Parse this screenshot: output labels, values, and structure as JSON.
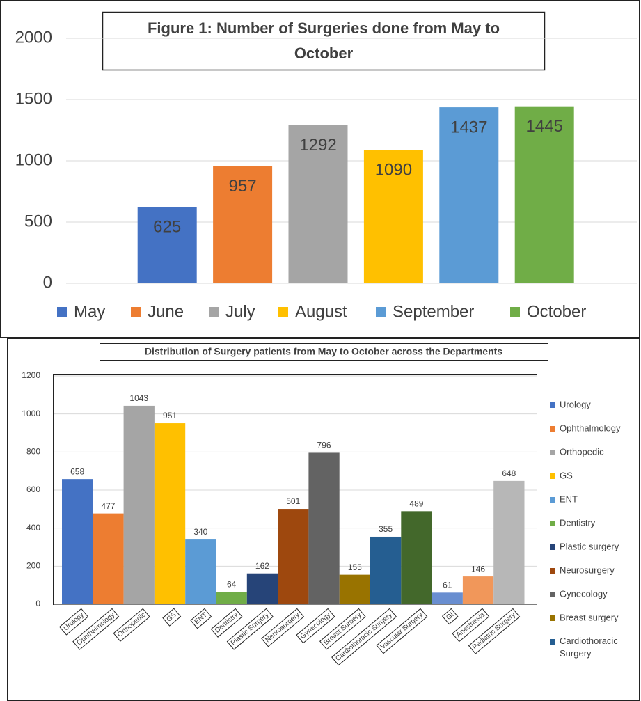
{
  "chart_data": [
    {
      "type": "bar",
      "title": "Figure 1: Number of Surgeries done from May to October",
      "categories": [
        "May",
        "June",
        "July",
        "August",
        "September",
        "October"
      ],
      "values": [
        625,
        957,
        1292,
        1090,
        1437,
        1445
      ],
      "colors": [
        "#4472c4",
        "#ed7d31",
        "#a5a5a5",
        "#ffc000",
        "#5b9bd5",
        "#70ad47"
      ],
      "ylim": [
        0,
        2000
      ],
      "yticks": [
        0,
        500,
        1000,
        1500,
        2000
      ],
      "grid": true,
      "legend": "bottom"
    },
    {
      "type": "bar",
      "title": "Distribution of Surgery patients from May to October across the Departments",
      "categories": [
        "Urology",
        "Ophthalmology",
        "Orthopedic",
        "GS",
        "ENT",
        "Dentistry",
        "Plastic Surgery",
        "Neurosurgery",
        "Gynecology",
        "Breast Surgery",
        "Cardiothoracic Surgery",
        "Vascular Surgery",
        "GI",
        "Anesthesia",
        "Pediatric Surgery"
      ],
      "values": [
        658,
        477,
        1043,
        951,
        340,
        64,
        162,
        501,
        796,
        155,
        355,
        489,
        61,
        146,
        648
      ],
      "colors": [
        "#4472c4",
        "#ed7d31",
        "#a5a5a5",
        "#ffc000",
        "#5b9bd5",
        "#70ad47",
        "#264478",
        "#9e480e",
        "#636363",
        "#997300",
        "#255e91",
        "#43682b",
        "#698ed0",
        "#f1975a",
        "#b7b7b7"
      ],
      "legend_entries": [
        "Urology",
        "Ophthalmology",
        "Orthopedic",
        "GS",
        "ENT",
        "Dentistry",
        "Plastic surgery",
        "Neurosurgery",
        "Gynecology",
        "Breast surgery",
        "Cardiothoracic Surgery"
      ],
      "ylim": [
        0,
        1200
      ],
      "yticks": [
        0,
        200,
        400,
        600,
        800,
        1000,
        1200
      ],
      "grid": true,
      "legend": "right"
    }
  ]
}
